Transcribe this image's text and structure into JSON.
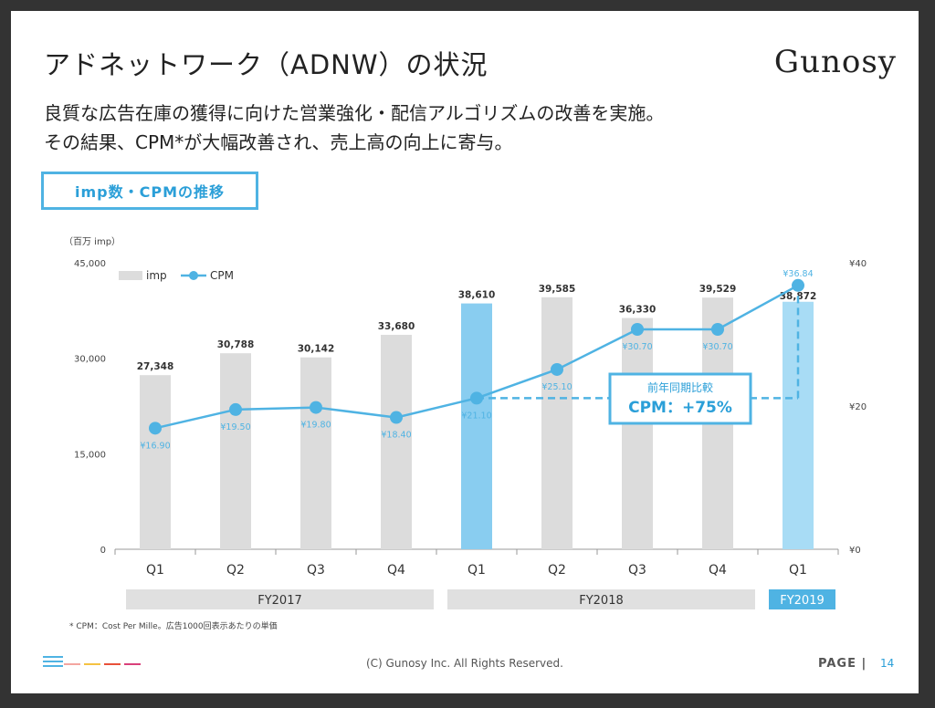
{
  "slide": {
    "title": "アドネットワーク（ADNW）の状況",
    "logo": "Gunosy",
    "lead_line1": "良質な広告在庫の獲得に向けた営業強化・配信アルゴリズムの改善を実施。",
    "lead_line2": "その結果、CPM*が大幅改善され、売上高の向上に寄与。",
    "section_tag": "imp数・CPMの推移",
    "footnote": "* CPM：Cost Per Mille。広告1000回表示あたりの単価",
    "copyright": "(C)  Gunosy Inc. All Rights Reserved.",
    "page_label": "PAGE |",
    "page_number": "14",
    "menu_icon": "menu-lines-icon",
    "accent_dashes": [
      "#f4a6a0",
      "#f5c242",
      "#e8503a",
      "#d9407a"
    ]
  },
  "chart_data": {
    "type": "bar",
    "categories": [
      "Q1",
      "Q2",
      "Q3",
      "Q4",
      "Q1",
      "Q2",
      "Q3",
      "Q4",
      "Q1"
    ],
    "groups": [
      {
        "label": "FY2017",
        "span": [
          0,
          3
        ],
        "color": "#e0e0e0"
      },
      {
        "label": "FY2018",
        "span": [
          4,
          7
        ],
        "color": "#e0e0e0"
      },
      {
        "label": "FY2019",
        "span": [
          8,
          8
        ],
        "color": "#4fb3e3"
      }
    ],
    "series": [
      {
        "name": "imp",
        "kind": "bar",
        "axis": "left",
        "values": [
          27348,
          30788,
          30142,
          33680,
          38610,
          39585,
          36330,
          39529,
          38872
        ],
        "labels": [
          "27,348",
          "30,788",
          "30,142",
          "33,680",
          "38,610",
          "39,585",
          "36,330",
          "39,529",
          "38,872"
        ],
        "colors": [
          "#dcdcdc",
          "#dcdcdc",
          "#dcdcdc",
          "#dcdcdc",
          "#89cdf0",
          "#dcdcdc",
          "#dcdcdc",
          "#dcdcdc",
          "#a8dcf5"
        ]
      },
      {
        "name": "CPM",
        "kind": "line",
        "axis": "right",
        "color": "#4fb3e3",
        "values": [
          16.9,
          19.5,
          19.8,
          18.4,
          21.1,
          25.1,
          30.7,
          30.7,
          36.84
        ],
        "labels": [
          "¥16.90",
          "¥19.50",
          "¥19.80",
          "¥18.40",
          "¥21.10",
          "¥25.10",
          "¥30.70",
          "¥30.70",
          "¥36.84"
        ]
      }
    ],
    "ylabel": "（百万 imp）",
    "ylim": [
      0,
      45000
    ],
    "yticks": [
      "0",
      "15,000",
      "30,000",
      "45,000"
    ],
    "ytick_values": [
      0,
      15000,
      30000,
      45000
    ],
    "y2lim": [
      0,
      40
    ],
    "y2ticks": [
      "¥0",
      "¥20",
      "¥40"
    ],
    "y2tick_values": [
      0,
      20,
      40
    ],
    "legend": "top-left",
    "grid": false,
    "annotation": {
      "line1": "前年同期比較",
      "line2": "CPM：+75%",
      "from_index": 4,
      "to_index": 8,
      "color": "#4fb3e3"
    }
  }
}
